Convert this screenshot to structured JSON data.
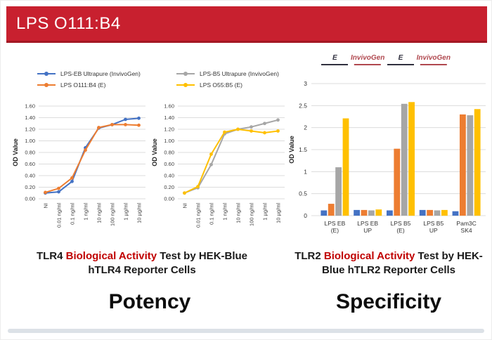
{
  "banner": {
    "title": "LPS O111:B4",
    "bg_color": "#c8202f"
  },
  "chart_data": [
    {
      "type": "line",
      "name": "tlr4-potency-chart-eb",
      "x": [
        "NI",
        "0.01 ng/ml",
        "0.1 ng/ml",
        "1 ng/ml",
        "10 ng/ml",
        "100 ng/ml",
        "1 µg/ml",
        "10 µg/ml"
      ],
      "ylabel": "OD Value",
      "ylim": [
        0,
        1.6
      ],
      "yticks": [
        "1.60",
        "1.40",
        "1.20",
        "1.00",
        "0.80",
        "0.60",
        "0.40",
        "0.20",
        "0.00"
      ],
      "grid": true,
      "legend_position": "top",
      "series": [
        {
          "name": "LPS-EB Ultrapure (InvivoGen)",
          "color": "#4472c4",
          "values": [
            0.1,
            0.12,
            0.3,
            0.88,
            1.22,
            1.28,
            1.37,
            1.39
          ]
        },
        {
          "name": "LPS O111:B4 (E)",
          "color": "#ed7d31",
          "values": [
            0.11,
            0.18,
            0.36,
            0.84,
            1.23,
            1.28,
            1.28,
            1.27
          ]
        }
      ]
    },
    {
      "type": "line",
      "name": "tlr4-potency-chart-b5",
      "x": [
        "NI",
        "0.01 ng/ml",
        "0.1 ng/ml",
        "1 ng/ml",
        "10 ng/ml",
        "100 ng/ml",
        "1 µg/ml",
        "10 µg/ml"
      ],
      "ylabel": "OD Value",
      "ylim": [
        0,
        1.6
      ],
      "yticks": [
        "1.60",
        "1.40",
        "1.20",
        "1.00",
        "0.80",
        "0.60",
        "0.40",
        "0.20",
        "0.00"
      ],
      "grid": true,
      "legend_position": "top",
      "series": [
        {
          "name": "LPS-B5 Ultrapure (InvivoGen)",
          "color": "#a6a6a6",
          "values": [
            0.1,
            0.19,
            0.59,
            1.12,
            1.2,
            1.24,
            1.3,
            1.36
          ]
        },
        {
          "name": "LPS O55:B5 (E)",
          "color": "#ffc000",
          "values": [
            0.1,
            0.21,
            0.77,
            1.15,
            1.2,
            1.17,
            1.14,
            1.17
          ]
        }
      ]
    },
    {
      "type": "bar",
      "name": "tlr2-specificity-chart",
      "categories": [
        [
          "LPS EB",
          "(E)"
        ],
        [
          "LPS EB",
          "UP"
        ],
        [
          "LPS B5",
          "(E)"
        ],
        [
          "LPS B5",
          "UP"
        ],
        [
          "Pam3C",
          "SK4"
        ]
      ],
      "ylabel": "OD Value",
      "ylim": [
        0,
        3
      ],
      "yticks": [
        "3",
        "2.5",
        "2",
        "1.5",
        "1",
        "0.5",
        "0"
      ],
      "grid": true,
      "annotations": [
        {
          "label": "E",
          "color": "#30303f",
          "group": 0
        },
        {
          "label": "InvivoGen",
          "color": "#b0484f",
          "group": 1
        },
        {
          "label": "E",
          "color": "#30303f",
          "group": 2
        },
        {
          "label": "InvivoGen",
          "color": "#b0484f",
          "group": 3
        }
      ],
      "series": [
        {
          "name": "series-blue",
          "color": "#4472c4",
          "values": [
            0.12,
            0.13,
            0.12,
            0.13,
            0.1
          ]
        },
        {
          "name": "series-orange",
          "color": "#ed7d31",
          "values": [
            0.27,
            0.13,
            1.52,
            0.13,
            2.3
          ]
        },
        {
          "name": "series-gray",
          "color": "#a6a6a6",
          "values": [
            1.1,
            0.12,
            2.54,
            0.12,
            2.28
          ]
        },
        {
          "name": "series-yellow",
          "color": "#ffc000",
          "values": [
            2.21,
            0.14,
            2.58,
            0.13,
            2.42
          ]
        }
      ]
    }
  ],
  "captions": {
    "left": {
      "prefix": "TLR4",
      "highlight": "Biological Activity",
      "suffix": "Test by HEK-Blue hTLR4 Reporter Cells",
      "highlight_color": "#c00000"
    },
    "right": {
      "prefix": "TLR2",
      "highlight": "Biological Activity",
      "suffix": "Test by HEK-Blue hTLR2 Reporter Cells",
      "highlight_color": "#c00000"
    }
  },
  "footer": {
    "left": "Potency",
    "right": "Specificity"
  }
}
